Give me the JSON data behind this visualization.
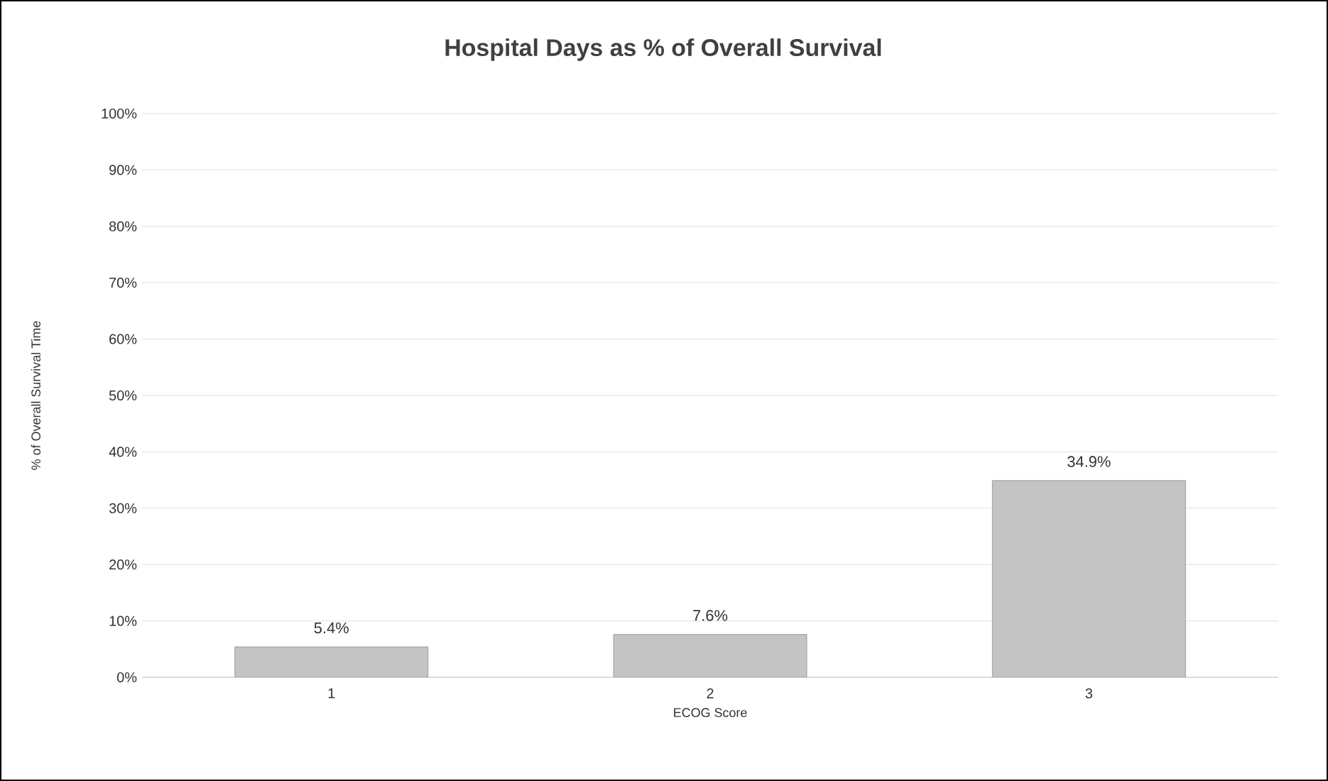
{
  "chart_data": {
    "type": "bar",
    "title": "Hospital Days as % of Overall Survival",
    "xlabel": "ECOG Score",
    "ylabel": "% of Overall Survival Time",
    "categories": [
      "1",
      "2",
      "3"
    ],
    "values": [
      5.4,
      7.6,
      34.9
    ],
    "value_labels": [
      "5.4%",
      "7.6%",
      "34.9%"
    ],
    "color": "#c4c4c4",
    "ylim": [
      0,
      100
    ],
    "yticks": [
      {
        "value": 0,
        "label": "0%"
      },
      {
        "value": 10,
        "label": "10%"
      },
      {
        "value": 20,
        "label": "20%"
      },
      {
        "value": 30,
        "label": "30%"
      },
      {
        "value": 40,
        "label": "40%"
      },
      {
        "value": 50,
        "label": "50%"
      },
      {
        "value": 60,
        "label": "60%"
      },
      {
        "value": 70,
        "label": "70%"
      },
      {
        "value": 80,
        "label": "80%"
      },
      {
        "value": 90,
        "label": "90%"
      },
      {
        "value": 100,
        "label": "100%"
      }
    ],
    "grid": "y"
  }
}
